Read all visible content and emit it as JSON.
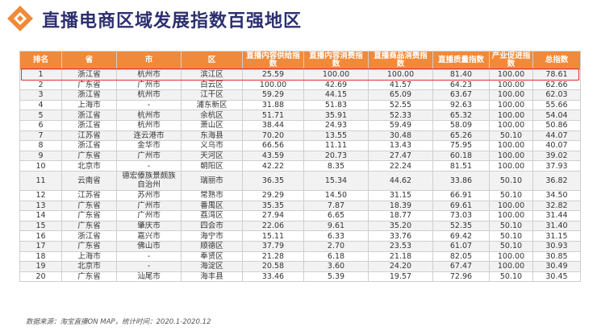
{
  "title": "直播电商区域发展指数百强地区",
  "source": "数据来源：淘宝直播ON MAP，统计时间：2020.1-2020.12",
  "colors": {
    "header": "#f08a3a",
    "title": "#2c2f6e",
    "highlight": "#e03030"
  },
  "table": {
    "headers": [
      "排名",
      "省",
      "市",
      "区",
      "直播内容供给指数",
      "直播内容消费指数",
      "直播商品消费指数",
      "直播质量指数",
      "产业促进指数",
      "总指数"
    ],
    "rows": [
      [
        "1",
        "浙江省",
        "杭州市",
        "滨江区",
        "25.59",
        "100.00",
        "100.00",
        "81.40",
        "100.00",
        "78.61"
      ],
      [
        "2",
        "广东省",
        "广州市",
        "白云区",
        "100.00",
        "42.69",
        "41.57",
        "64.23",
        "100.00",
        "62.66"
      ],
      [
        "3",
        "浙江省",
        "杭州市",
        "江干区",
        "59.29",
        "44.15",
        "65.09",
        "63.67",
        "100.00",
        "62.03"
      ],
      [
        "4",
        "上海市",
        "-",
        "浦东新区",
        "31.88",
        "51.83",
        "52.55",
        "92.63",
        "100.00",
        "55.66"
      ],
      [
        "5",
        "浙江省",
        "杭州市",
        "余杭区",
        "51.71",
        "35.91",
        "52.33",
        "65.32",
        "100.00",
        "54.04"
      ],
      [
        "6",
        "浙江省",
        "杭州市",
        "萧山区",
        "38.44",
        "24.93",
        "59.49",
        "58.09",
        "100.00",
        "50.86"
      ],
      [
        "7",
        "江苏省",
        "连云港市",
        "东海县",
        "70.20",
        "13.55",
        "30.48",
        "65.26",
        "50.10",
        "44.07"
      ],
      [
        "8",
        "浙江省",
        "金华市",
        "义乌市",
        "66.56",
        "11.11",
        "13.43",
        "75.95",
        "100.00",
        "40.07"
      ],
      [
        "9",
        "广东省",
        "广州市",
        "天河区",
        "43.59",
        "20.73",
        "27.47",
        "60.18",
        "100.00",
        "39.02"
      ],
      [
        "10",
        "北京市",
        "-",
        "朝阳区",
        "42.22",
        "8.35",
        "22.24",
        "81.51",
        "100.00",
        "37.93"
      ],
      [
        "11",
        "云南省",
        "德宏傣族景颇族自治州",
        "瑞丽市",
        "36.35",
        "15.34",
        "44.62",
        "33.86",
        "50.10",
        "36.82"
      ],
      [
        "12",
        "江苏省",
        "苏州市",
        "常熟市",
        "29.29",
        "14.50",
        "31.15",
        "66.91",
        "50.10",
        "34.50"
      ],
      [
        "13",
        "广东省",
        "广州市",
        "番禺区",
        "35.35",
        "7.87",
        "18.39",
        "69.61",
        "100.00",
        "32.82"
      ],
      [
        "14",
        "广东省",
        "广州市",
        "荔湾区",
        "27.94",
        "6.65",
        "18.77",
        "73.03",
        "100.00",
        "31.44"
      ],
      [
        "15",
        "广东省",
        "肇庆市",
        "四会市",
        "22.06",
        "9.61",
        "35.20",
        "52.35",
        "50.10",
        "31.40"
      ],
      [
        "16",
        "浙江省",
        "嘉兴市",
        "海宁市",
        "15.11",
        "6.33",
        "33.76",
        "69.42",
        "50.10",
        "31.15"
      ],
      [
        "17",
        "广东省",
        "佛山市",
        "顺德区",
        "37.79",
        "2.70",
        "23.53",
        "61.07",
        "50.10",
        "30.93"
      ],
      [
        "18",
        "上海市",
        "-",
        "奉贤区",
        "21.28",
        "6.18",
        "21.18",
        "82.05",
        "100.00",
        "30.85"
      ],
      [
        "19",
        "北京市",
        "-",
        "海淀区",
        "20.58",
        "3.60",
        "24.20",
        "67.47",
        "100.00",
        "30.49"
      ],
      [
        "20",
        "广东省",
        "汕尾市",
        "海丰县",
        "33.46",
        "5.39",
        "19.57",
        "72.96",
        "50.10",
        "30.45"
      ]
    ]
  }
}
